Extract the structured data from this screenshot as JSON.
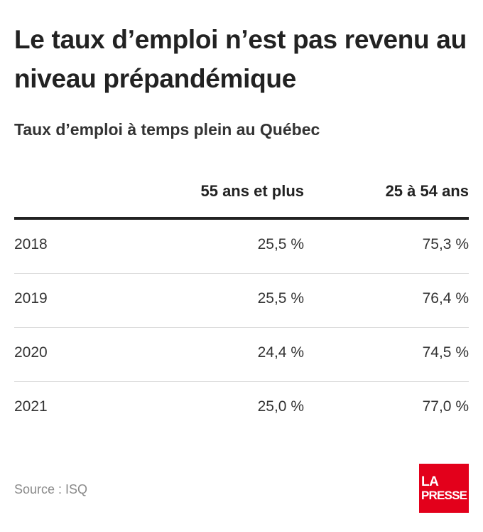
{
  "title": "Le taux d’emploi n’est pas revenu au niveau prépandémique",
  "subtitle": "Taux d’emploi à temps plein au Québec",
  "chart_data": {
    "type": "table",
    "title": "Le taux d’emploi n’est pas revenu au niveau prépandémique",
    "subtitle": "Taux d’emploi à temps plein au Québec",
    "columns": [
      "",
      "55 ans et plus",
      "25 à 54 ans"
    ],
    "rows": [
      {
        "year": "2018",
        "age55plus": "25,5 %",
        "age25to54": "75,3 %"
      },
      {
        "year": "2019",
        "age55plus": "25,5 %",
        "age25to54": "76,4 %"
      },
      {
        "year": "2020",
        "age55plus": "24,4 %",
        "age25to54": "74,5 %"
      },
      {
        "year": "2021",
        "age55plus": "25,0 %",
        "age25to54": "77,0 %"
      }
    ],
    "series": [
      {
        "name": "55 ans et plus",
        "values": [
          25.5,
          25.5,
          24.4,
          25.0
        ]
      },
      {
        "name": "25 à 54 ans",
        "values": [
          75.3,
          76.4,
          74.5,
          77.0
        ]
      }
    ],
    "categories": [
      "2018",
      "2019",
      "2020",
      "2021"
    ]
  },
  "source": "Source : ISQ",
  "logo": {
    "line1": "LA",
    "line2": "PRESSE",
    "color": "#e3001b"
  }
}
